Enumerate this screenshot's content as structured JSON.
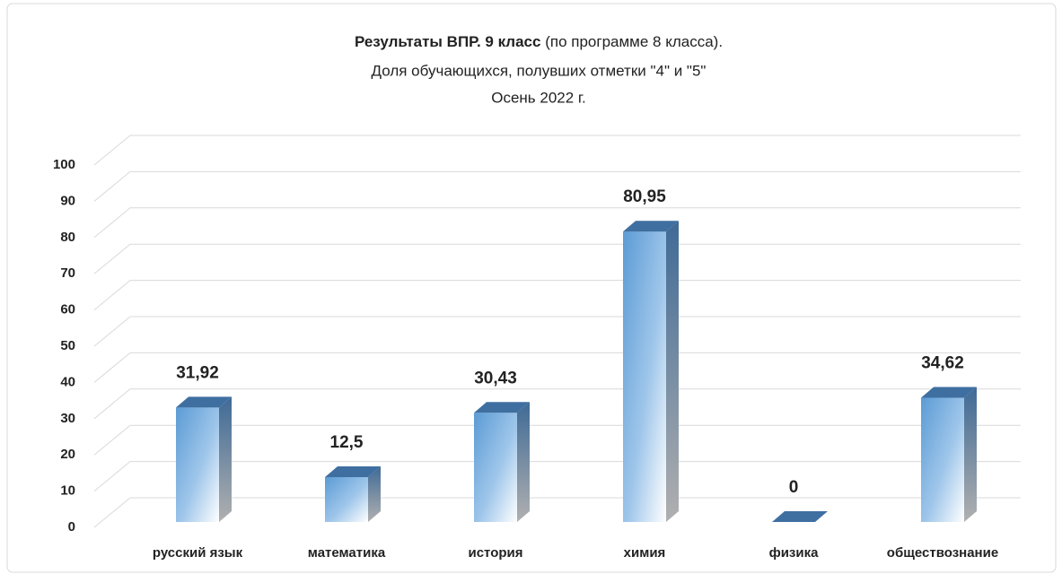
{
  "chart_data": {
    "type": "bar3d",
    "title": [
      "Результаты ВПР. 9 класс",
      "(по программе 8 класса).",
      "Доля обучающихся, полувших отметки \"4\" и \"5\"",
      "Осень 2022 г."
    ],
    "categories": [
      "русский язык",
      "математика",
      "история",
      "химия",
      "физика",
      "обществознание"
    ],
    "values": [
      31.92,
      12.5,
      30.43,
      80.95,
      0,
      34.62
    ],
    "value_labels": [
      "31,92",
      "12,5",
      "30,43",
      "80,95",
      "0",
      "34,62"
    ],
    "color": "#5b9bd5",
    "label_color": "#c00000",
    "ylim": [
      0,
      100
    ],
    "yticks": [
      0,
      10,
      20,
      30,
      40,
      50,
      60,
      70,
      80,
      90,
      100
    ],
    "grid": true
  }
}
